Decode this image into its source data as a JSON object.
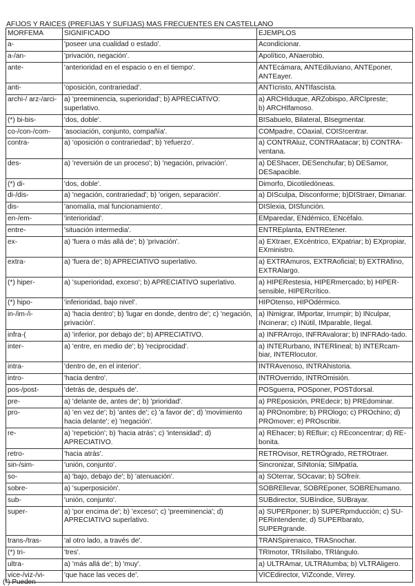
{
  "title": "AFIJOS Y RAICES (PREFIJAS Y SUFIJAS) MAS FRECUENTES EN CASTELLANO",
  "headers": [
    "MORFEMA",
    "SIGNIFICADO",
    "EJEMPLOS"
  ],
  "rows": [
    [
      "a-",
      "'poseer una cualidad o estado'.",
      "Acondicionar."
    ],
    [
      "a-/an-",
      "'privación, negación'.",
      "Apolítico, ANaerobio."
    ],
    [
      "ante-",
      "'anterioridad en el espacio o en el tiempo'.",
      "ANTEcámara, ANTEdiluviano, ANTEponer, ANTEayer."
    ],
    [
      "anti-",
      "'oposición, contrariedad'.",
      "ANTIcristo, ANTIfascista."
    ],
    [
      "archi-/ arz-/arci-",
      "a) 'preeminencia, superioridad'; b) APRECIATIVO: superlativo.",
      "a)        ARCHIduque, ARZobispo, ARCIpreste;\nb)        ARCHIfamoso."
    ],
    [
      "(*) bi-bis-",
      "'dos, doble'.",
      "BISabuelo, Bilateral, BIsegmentar."
    ],
    [
      "co-/con-/com-",
      "'asociación, conjunto, compañía'.",
      "COMpadre, COaxial, COIS!centrar."
    ],
    [
      "contra-",
      "a) 'oposición o contrariedad'; b) 'refuerzo'.",
      "a) CONTRAluz, CONTRAatacar; b) CONTRA-ventana."
    ],
    [
      "des-",
      "a) 'reversión de un proceso'; b) 'negación, privación'.",
      "a) DEShacer, DESenchufar; b) DESamor, DESapacible."
    ],
    [
      "(*) di-",
      "'dos, doble'.",
      "Dimorfo, Dicotiledóneas."
    ],
    [
      "di-/dis-",
      "a) 'negación, contrariedad'; b) 'origen, separación'.",
      "a) DISculpa, Disconforme; b)DIStraer, Dimanar."
    ],
    [
      "dis-",
      "'anomalía, mal funcionamiento'.",
      "DISlexia, DISfunción."
    ],
    [
      "en-/em-",
      "'interioridad'.",
      "EMparedar, ENdémico, ENcéfalo."
    ],
    [
      "entre-",
      "'situación intermedia'.",
      "ENTREplanta, ENTREtener."
    ],
    [
      "ex-",
      "a) 'fuera o más allá de'; b) 'privación'.",
      "a) EXtraer, EXcéntrico, EXpatriar; b) EXpropiar, EXministro."
    ],
    [
      "extra-",
      "a) 'fuera de'; b) APRECIATIVO superlativo.",
      "a) EXTRAmuros, EXTRAoficial; b) EXTRAfino, EXTRAlargo."
    ],
    [
      "(*) hiper-",
      "a) 'superioridad, exceso'; b) APRECIATIVO superlativo.",
      "a) HIPERestesia, HIPERmercado; b) HIPER-sensible, HIPERcrítico."
    ],
    [
      "(*) hipo-",
      "'inferioridad, bajo nivel'.",
      "HIPOtenso, HIPOdérmico."
    ],
    [
      "in-/im-/i-",
      "a) 'hacia dentro'; b) 'lugar en donde, dentro de'; c) 'negación, privación'.",
      "a) INmigrar, IMportar, Irrumpir; b) INculpar, INcinerar; c) INútil, IMparable, Ilegal."
    ],
    [
      "infra-(",
      "a) 'inferior, por debajo de'; b) APRECIATIVO.",
      "a) INFRArrojo, INFRAvalorar; b) INFRAdo-tado."
    ],
    [
      "inter-",
      "a) 'entre, en medio de'; b) 'reciprocidad'.",
      "a) INTERurbano, INTERlineal; b) INTERcam-biar, INTERlocutor."
    ],
    [
      "intra-",
      "'dentro de, en el interior'.",
      "INTRAvenoso, INTRAhistoria."
    ],
    [
      "intro-",
      "'hacia dentro'.",
      "INTROverrido, INTROmisión."
    ],
    [
      "pos-/post-",
      "'detrás de, después de'.",
      "POSguerra, POSponer, POSTdorsal."
    ],
    [
      "pre-",
      "a) 'delante de, antes de'; b) 'prioridad'.",
      "a) PREposición, PREdecir; b) PREdominar."
    ],
    [
      "pro-",
      "a) 'en vez de'; b) 'antes de'; c) 'a favor de'; d) 'movimiento hacia delante'; e) 'negación'.",
      "a) PROnombre; b) PROlogo; c) PROchino; d) PROmover; e) PROscribir."
    ],
    [
      "re-",
      "a) 'repetición'; b) 'hacia atrás'; c) 'intensidad'; d) APRECIATIVO.",
      "a) REhacer; b) REfluir; c) REconcentrar; d) RE- bonita."
    ],
    [
      "retro-",
      "'hacia atrás'.",
      "RETROvisor, RETRÓgrado, RETROtraer."
    ],
    [
      "sin-/sim-",
      "'unión, conjunto'.",
      "Sincronizar, SINtonía; SIMpatía."
    ],
    [
      "so-",
      "a) 'bajo, debajo de'; b) 'atenuación'.",
      "a) SOterrar, SOcavar; b) SOfreír."
    ],
    [
      "sobre-",
      "a) 'superposición'.",
      "SOBREllevar, SOBREponer, SOBREhumano."
    ],
    [
      "sub-",
      "'unión, conjunto'.",
      "SUBdirector, SUBíndice, SUBrayar."
    ],
    [
      "super-",
      "a) 'por encima de'; b) 'exceso'; c) 'preeminencia'; d) APRECIATIVO superlativo.",
      "a) SUPERponer; b) SUPERpmducción; c) SU-PERintendente; d) SUPERbarato, SUPERgrande."
    ],
    [
      "trans-/tras-",
      "'al otro lado, a través de'.",
      "TRANSpirenaico, TRASnochar."
    ],
    [
      " (*) tri-",
      "'tres'.",
      "TRImotor, TRIsílabo, TRIángulo."
    ],
    [
      "ultra-",
      "a) 'más allá de'; b) 'muy'.",
      "a) ULTRAmar, ULTRAtumba; b) VLTRAligero."
    ],
    [
      "vice-/viz-/vi-",
      "'que hace las veces de'.",
      "VICEdirector, VIZconde, Virrey."
    ]
  ],
  "footnote": "(*) Pueden"
}
